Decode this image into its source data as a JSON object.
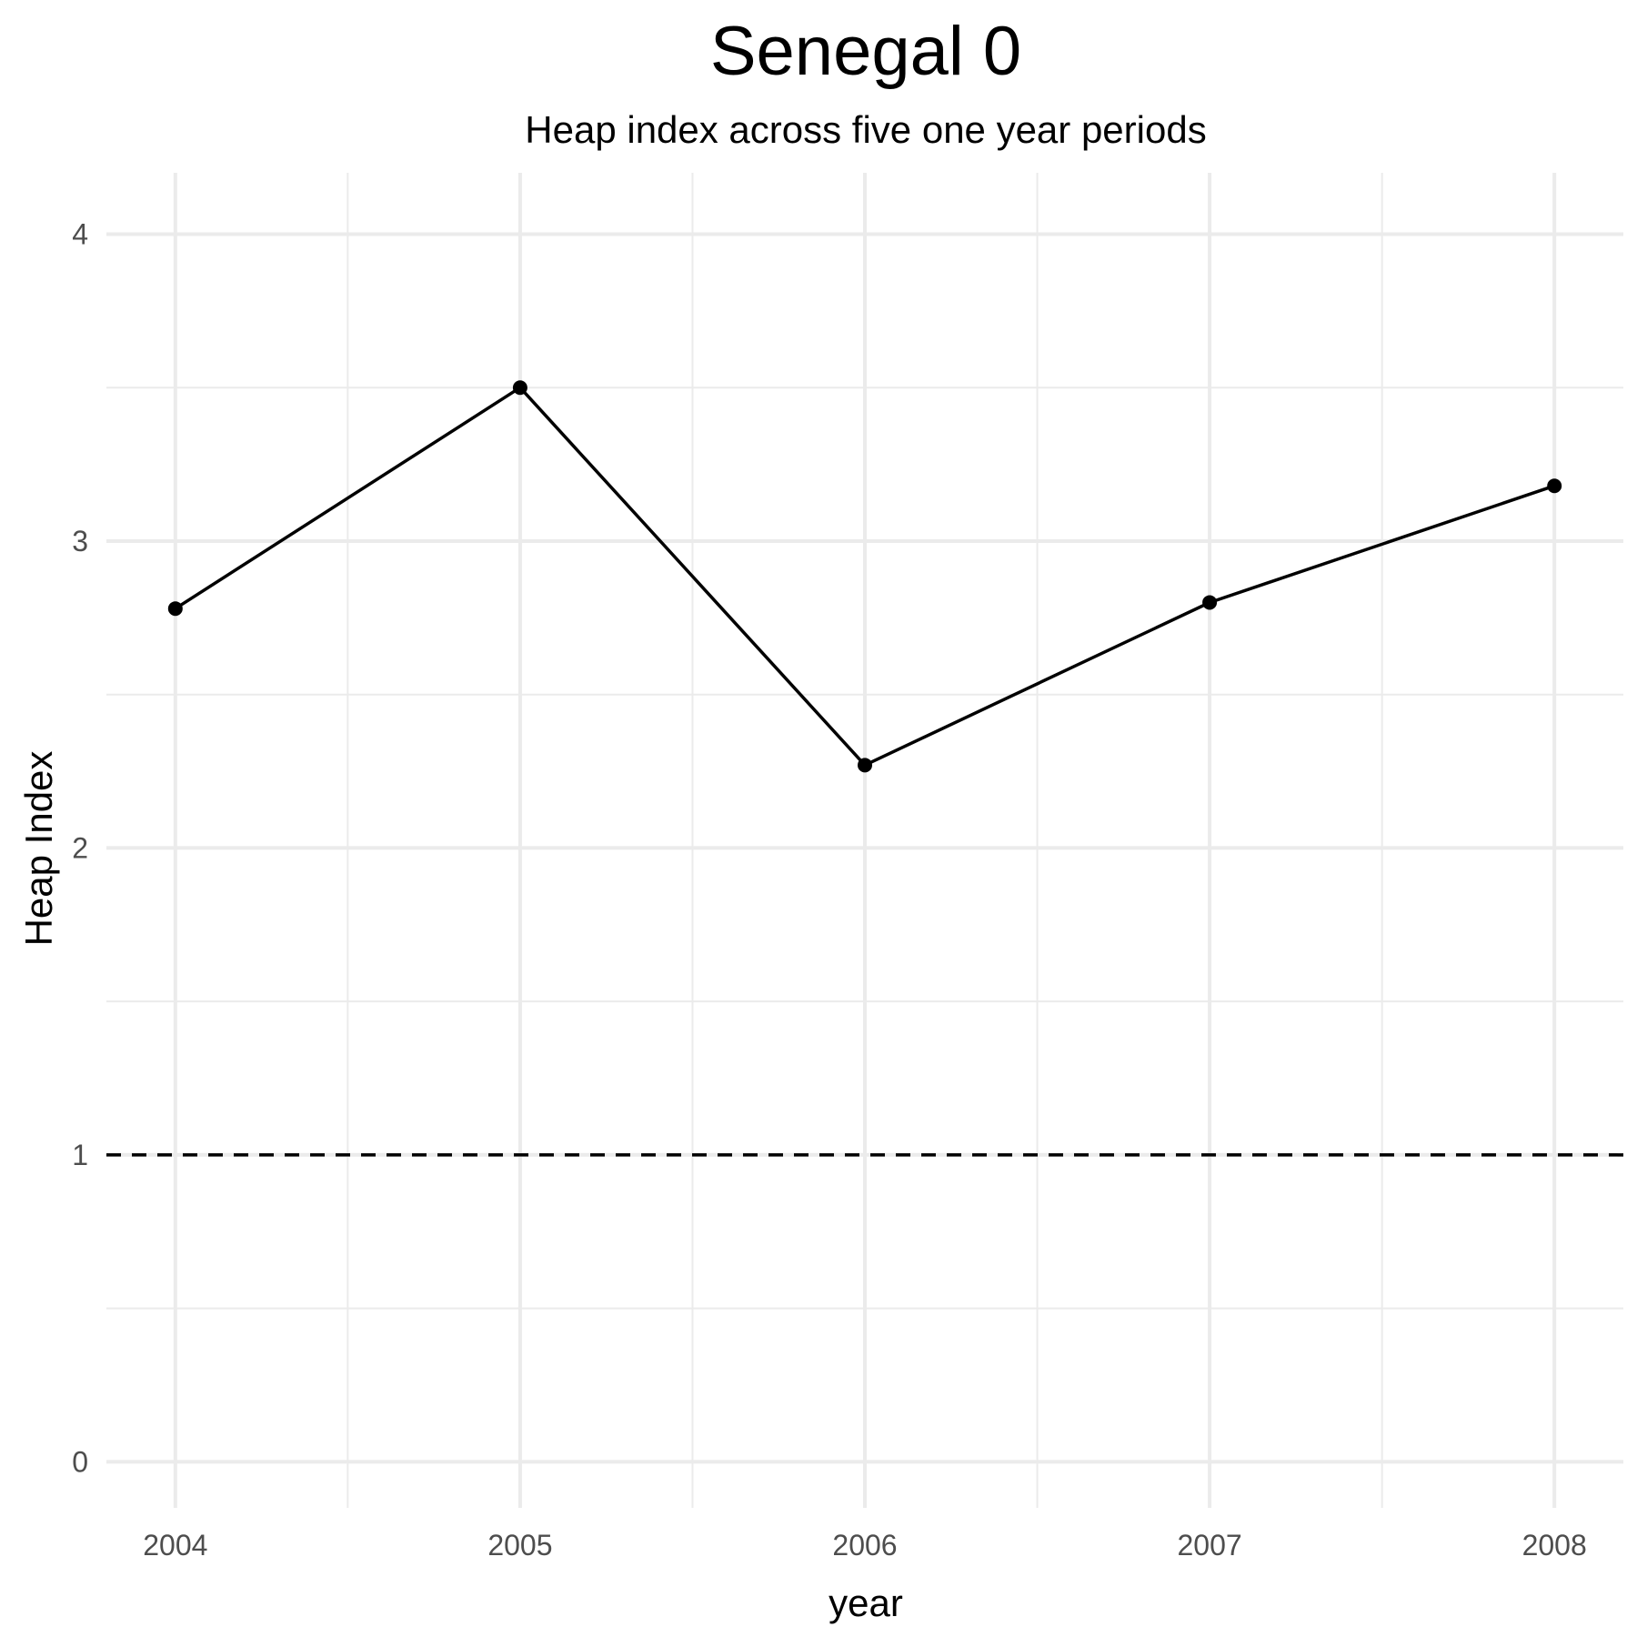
{
  "chart_data": {
    "type": "line",
    "title": "Senegal 0",
    "subtitle": "Heap index across five one year periods",
    "xlabel": "year",
    "ylabel": "Heap Index",
    "x": [
      2004,
      2005,
      2006,
      2007,
      2008
    ],
    "series": [
      {
        "values": [
          2.78,
          3.5,
          2.27,
          2.8,
          3.18
        ],
        "color": "#000000"
      }
    ],
    "xlim": [
      2003.8,
      2008.2
    ],
    "ylim": [
      -0.15,
      4.2
    ],
    "x_ticks": [
      2004,
      2005,
      2006,
      2007,
      2008
    ],
    "x_tick_labels": [
      "2004",
      "2005",
      "2006",
      "2007",
      "2008"
    ],
    "y_ticks": [
      0,
      1,
      2,
      3,
      4
    ],
    "y_tick_labels": [
      "0",
      "1",
      "2",
      "3",
      "4"
    ],
    "x_minor_ticks": [
      2004.5,
      2005.5,
      2006.5,
      2007.5
    ],
    "y_minor_ticks": [
      0.5,
      1.5,
      2.5,
      3.5
    ],
    "reference_line": {
      "y": 1,
      "style": "dashed",
      "color": "#000000"
    },
    "grid": true,
    "legend": "none"
  }
}
